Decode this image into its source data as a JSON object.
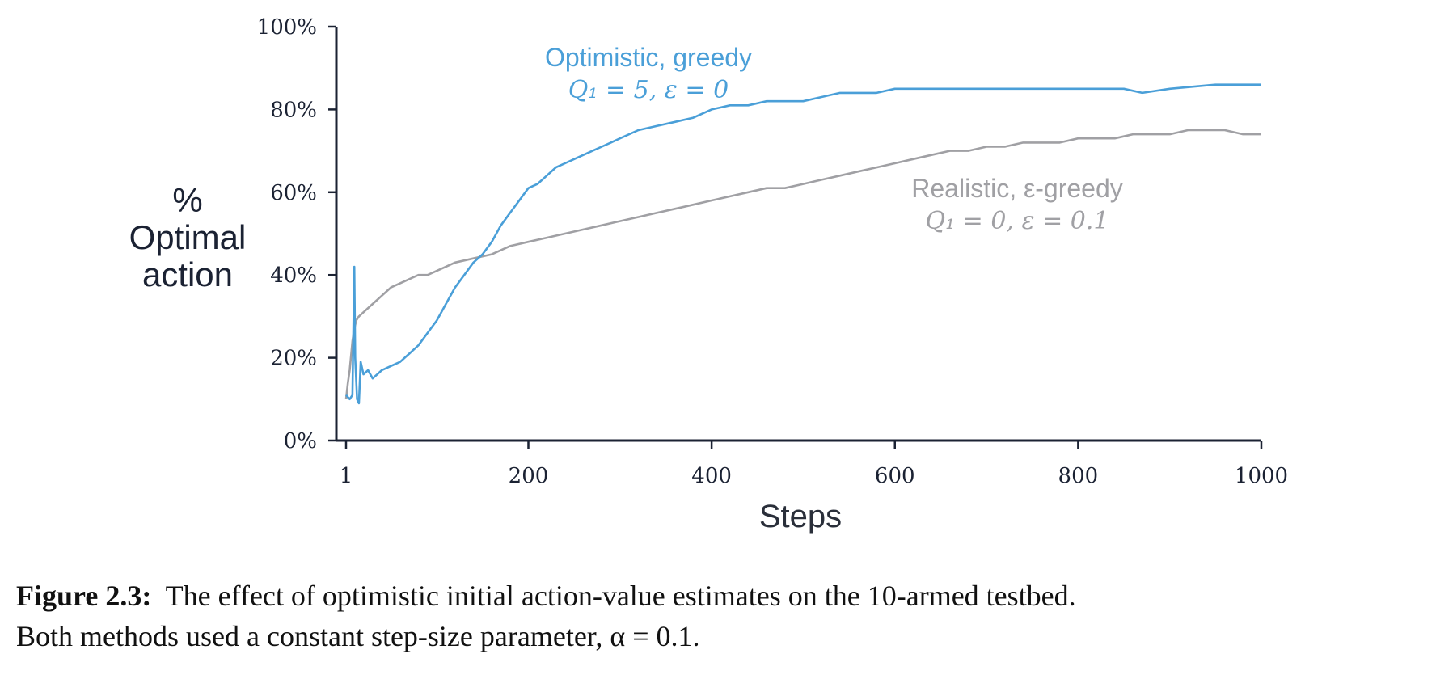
{
  "chart_data": {
    "type": "line",
    "xlabel": "Steps",
    "ylabel": "% Optimal action",
    "ylabel_lines": [
      "%",
      "Optimal",
      "action"
    ],
    "xlim": [
      1,
      1000
    ],
    "ylim": [
      0,
      1
    ],
    "x_ticks": [
      1,
      200,
      400,
      600,
      800,
      1000
    ],
    "x_tick_labels": [
      "1",
      "200",
      "400",
      "600",
      "800",
      "1000"
    ],
    "y_ticks": [
      0,
      0.2,
      0.4,
      0.6,
      0.8,
      1.0
    ],
    "y_tick_labels": [
      "0%",
      "20%",
      "40%",
      "60%",
      "80%",
      "100%"
    ],
    "grid": false,
    "legend": "none",
    "series": [
      {
        "name": "Optimistic, greedy",
        "label_math": "Q₁ = 5,  ε = 0",
        "color": "#4a9fd8",
        "x": [
          1,
          5,
          8,
          10,
          11,
          13,
          15,
          17,
          20,
          25,
          30,
          40,
          50,
          60,
          70,
          80,
          90,
          100,
          110,
          120,
          130,
          140,
          150,
          160,
          170,
          180,
          190,
          200,
          210,
          220,
          230,
          240,
          250,
          260,
          270,
          280,
          290,
          300,
          320,
          340,
          360,
          380,
          400,
          420,
          440,
          460,
          480,
          500,
          520,
          540,
          560,
          580,
          600,
          650,
          700,
          750,
          800,
          850,
          870,
          900,
          950,
          1000
        ],
        "y": [
          0.11,
          0.1,
          0.11,
          0.42,
          0.2,
          0.1,
          0.09,
          0.19,
          0.16,
          0.17,
          0.15,
          0.17,
          0.18,
          0.19,
          0.21,
          0.23,
          0.26,
          0.29,
          0.33,
          0.37,
          0.4,
          0.43,
          0.45,
          0.48,
          0.52,
          0.55,
          0.58,
          0.61,
          0.62,
          0.64,
          0.66,
          0.67,
          0.68,
          0.69,
          0.7,
          0.71,
          0.72,
          0.73,
          0.75,
          0.76,
          0.77,
          0.78,
          0.8,
          0.81,
          0.81,
          0.82,
          0.82,
          0.82,
          0.83,
          0.84,
          0.84,
          0.84,
          0.85,
          0.85,
          0.85,
          0.85,
          0.85,
          0.85,
          0.84,
          0.85,
          0.86,
          0.86
        ]
      },
      {
        "name": "Realistic, ε-greedy",
        "label_math": "Q₁ = 0,  ε = 0.1",
        "color": "#a0a0a4",
        "x": [
          1,
          3,
          5,
          8,
          10,
          12,
          15,
          20,
          30,
          40,
          50,
          60,
          70,
          80,
          90,
          100,
          120,
          140,
          160,
          180,
          200,
          220,
          240,
          260,
          280,
          300,
          320,
          340,
          360,
          380,
          400,
          420,
          440,
          460,
          480,
          500,
          520,
          540,
          560,
          580,
          600,
          620,
          640,
          660,
          680,
          700,
          720,
          740,
          760,
          780,
          800,
          820,
          840,
          860,
          880,
          900,
          920,
          940,
          960,
          980,
          1000
        ],
        "y": [
          0.1,
          0.14,
          0.17,
          0.24,
          0.27,
          0.29,
          0.3,
          0.31,
          0.33,
          0.35,
          0.37,
          0.38,
          0.39,
          0.4,
          0.4,
          0.41,
          0.43,
          0.44,
          0.45,
          0.47,
          0.48,
          0.49,
          0.5,
          0.51,
          0.52,
          0.53,
          0.54,
          0.55,
          0.56,
          0.57,
          0.58,
          0.59,
          0.6,
          0.61,
          0.61,
          0.62,
          0.63,
          0.64,
          0.65,
          0.66,
          0.67,
          0.68,
          0.69,
          0.7,
          0.7,
          0.71,
          0.71,
          0.72,
          0.72,
          0.72,
          0.73,
          0.73,
          0.73,
          0.74,
          0.74,
          0.74,
          0.75,
          0.75,
          0.75,
          0.74,
          0.74
        ]
      }
    ]
  },
  "caption": {
    "label": "Figure 2.3:",
    "line1": "The effect of optimistic initial action-value estimates on the 10-armed testbed.",
    "line2": "Both methods used a constant step-size parameter, α = 0.1."
  }
}
